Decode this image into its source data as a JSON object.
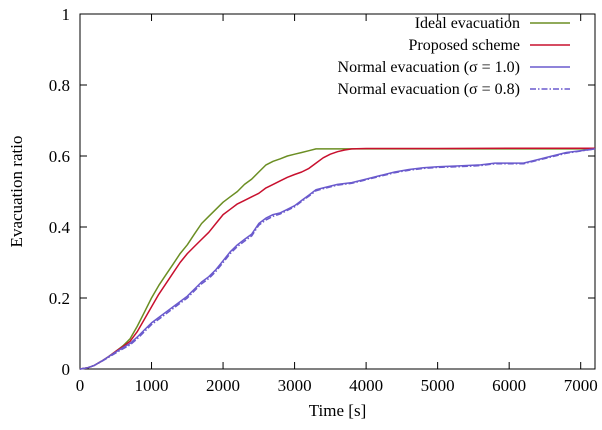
{
  "chart_data": {
    "type": "line",
    "xlabel": "Time [s]",
    "ylabel": "Evacuation ratio",
    "xlim": [
      0,
      7200
    ],
    "ylim": [
      0,
      1
    ],
    "xticks": [
      0,
      1000,
      2000,
      3000,
      4000,
      5000,
      6000,
      7000
    ],
    "yticks": [
      0,
      0.2,
      0.4,
      0.6,
      0.8,
      1
    ],
    "ytick_labels": [
      "0",
      "0.2",
      "0.4",
      "0.6",
      "0.8",
      "1"
    ],
    "grid": false,
    "legend_position": "top-right",
    "series": [
      {
        "name": "Ideal evacuation",
        "color": "#6b8e23",
        "dash": "solid",
        "x": [
          0,
          100,
          200,
          300,
          400,
          500,
          600,
          700,
          800,
          900,
          1000,
          1100,
          1200,
          1300,
          1400,
          1500,
          1600,
          1700,
          1800,
          1900,
          2000,
          2100,
          2200,
          2300,
          2400,
          2500,
          2600,
          2700,
          2800,
          2900,
          3000,
          3100,
          3200,
          3300,
          3400,
          3600,
          4000,
          5000,
          6000,
          7200
        ],
        "y": [
          0,
          0.003,
          0.01,
          0.022,
          0.035,
          0.05,
          0.065,
          0.085,
          0.12,
          0.16,
          0.2,
          0.235,
          0.265,
          0.295,
          0.325,
          0.35,
          0.38,
          0.41,
          0.43,
          0.45,
          0.47,
          0.485,
          0.5,
          0.52,
          0.535,
          0.555,
          0.575,
          0.585,
          0.592,
          0.6,
          0.605,
          0.61,
          0.615,
          0.62,
          0.62,
          0.62,
          0.62,
          0.62,
          0.62,
          0.62
        ]
      },
      {
        "name": "Proposed scheme",
        "color": "#c8102e",
        "dash": "solid",
        "x": [
          0,
          100,
          200,
          300,
          400,
          500,
          600,
          700,
          800,
          900,
          1000,
          1100,
          1200,
          1300,
          1400,
          1500,
          1600,
          1700,
          1800,
          1900,
          2000,
          2100,
          2200,
          2300,
          2400,
          2500,
          2600,
          2700,
          2800,
          2900,
          3000,
          3100,
          3200,
          3300,
          3400,
          3500,
          3600,
          3700,
          3800,
          4000,
          5000,
          6000,
          7200
        ],
        "y": [
          0,
          0.003,
          0.01,
          0.022,
          0.035,
          0.05,
          0.063,
          0.078,
          0.105,
          0.14,
          0.175,
          0.21,
          0.24,
          0.27,
          0.3,
          0.325,
          0.345,
          0.365,
          0.385,
          0.41,
          0.435,
          0.45,
          0.465,
          0.475,
          0.485,
          0.495,
          0.51,
          0.52,
          0.53,
          0.54,
          0.548,
          0.555,
          0.565,
          0.58,
          0.595,
          0.605,
          0.612,
          0.617,
          0.62,
          0.621,
          0.621,
          0.622,
          0.622
        ]
      },
      {
        "name": "Normal evacuation (σ = 1.0)",
        "color": "#6a5acd",
        "dash": "solid",
        "x": [
          0,
          100,
          200,
          300,
          400,
          500,
          600,
          700,
          800,
          900,
          1000,
          1100,
          1200,
          1300,
          1400,
          1500,
          1600,
          1700,
          1800,
          1900,
          2000,
          2100,
          2200,
          2300,
          2400,
          2500,
          2600,
          2700,
          2800,
          2900,
          3000,
          3100,
          3200,
          3300,
          3400,
          3600,
          3800,
          4000,
          4200,
          4400,
          4600,
          4800,
          5000,
          5300,
          5600,
          5800,
          6000,
          6200,
          6400,
          6600,
          6800,
          7000,
          7200
        ],
        "y": [
          0,
          0.003,
          0.01,
          0.022,
          0.035,
          0.048,
          0.06,
          0.072,
          0.09,
          0.11,
          0.13,
          0.145,
          0.16,
          0.175,
          0.19,
          0.205,
          0.225,
          0.245,
          0.26,
          0.28,
          0.305,
          0.33,
          0.35,
          0.365,
          0.38,
          0.41,
          0.425,
          0.435,
          0.44,
          0.45,
          0.46,
          0.475,
          0.49,
          0.505,
          0.51,
          0.52,
          0.525,
          0.535,
          0.545,
          0.555,
          0.562,
          0.567,
          0.57,
          0.572,
          0.575,
          0.58,
          0.58,
          0.58,
          0.59,
          0.6,
          0.61,
          0.615,
          0.62
        ]
      },
      {
        "name": "Normal evacuation (σ = 0.8)",
        "color": "#6a5acd",
        "dash": "dashdot",
        "x": [
          0,
          100,
          200,
          300,
          400,
          500,
          600,
          700,
          800,
          900,
          1000,
          1100,
          1200,
          1300,
          1400,
          1500,
          1600,
          1700,
          1800,
          1900,
          2000,
          2100,
          2200,
          2300,
          2400,
          2500,
          2600,
          2700,
          2800,
          2900,
          3000,
          3100,
          3200,
          3300,
          3400,
          3600,
          3800,
          4000,
          4200,
          4400,
          4600,
          4800,
          5000,
          5300,
          5600,
          5800,
          6000,
          6200,
          6400,
          6600,
          6800,
          7000,
          7200
        ],
        "y": [
          0,
          0.003,
          0.01,
          0.021,
          0.033,
          0.045,
          0.057,
          0.068,
          0.085,
          0.105,
          0.125,
          0.14,
          0.155,
          0.17,
          0.185,
          0.2,
          0.22,
          0.24,
          0.255,
          0.275,
          0.3,
          0.325,
          0.345,
          0.36,
          0.375,
          0.405,
          0.42,
          0.43,
          0.437,
          0.447,
          0.457,
          0.472,
          0.487,
          0.502,
          0.508,
          0.518,
          0.523,
          0.533,
          0.543,
          0.553,
          0.56,
          0.565,
          0.568,
          0.57,
          0.573,
          0.578,
          0.578,
          0.578,
          0.588,
          0.598,
          0.608,
          0.614,
          0.62
        ]
      }
    ]
  }
}
